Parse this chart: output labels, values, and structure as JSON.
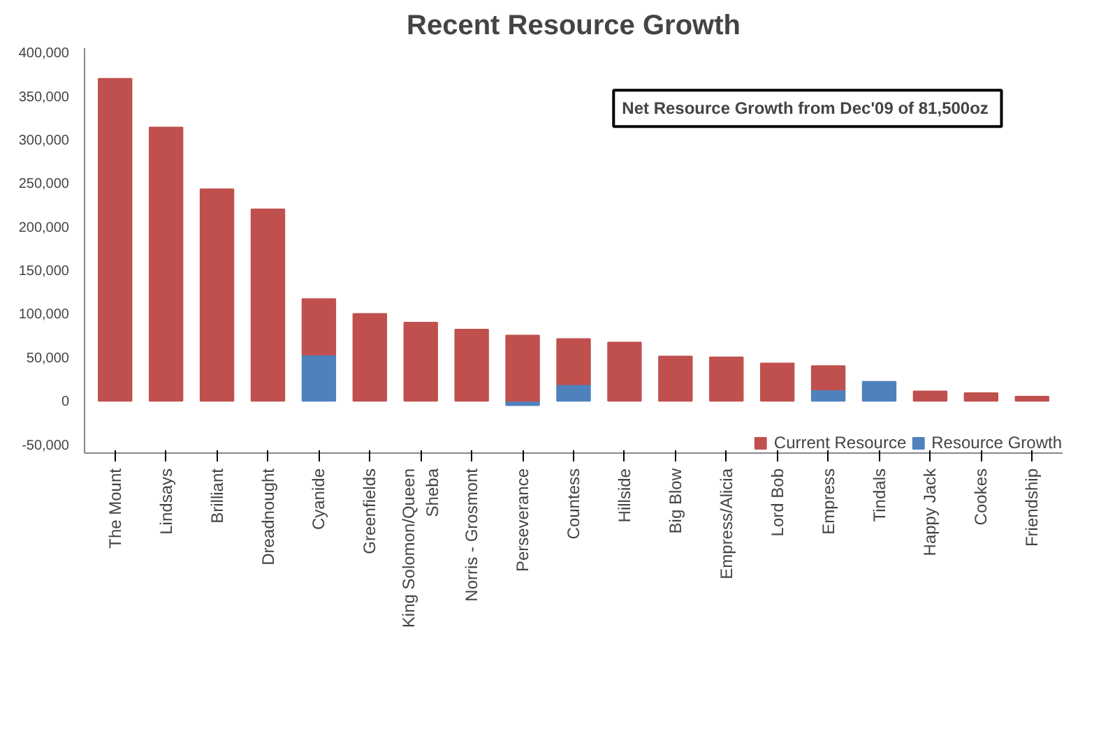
{
  "chart_data": {
    "type": "bar",
    "title": "Recent Resource Growth",
    "categories": [
      "The Mount",
      "Lindsays",
      "Brilliant",
      "Dreadnought",
      "Cyanide",
      "Greenfields",
      "King Solomon/Queen Sheba",
      "Norris - Grosmont",
      "Perseverance",
      "Countess",
      "Hillside",
      "Big Blow",
      "Empress/Alicia",
      "Lord Bob",
      "Empress",
      "Tindals",
      "Happy Jack",
      "Cookes",
      "Friendship"
    ],
    "stacked": true,
    "series": [
      {
        "name": "Resource Growth",
        "color": "#4f81bd",
        "values": [
          null,
          null,
          null,
          null,
          53000,
          null,
          null,
          null,
          -5000,
          19000,
          null,
          null,
          null,
          null,
          13000,
          22000,
          null,
          null,
          null
        ]
      },
      {
        "name": "Current Resource",
        "color": "#c0504d",
        "values": [
          370000,
          314000,
          243000,
          220000,
          64000,
          100000,
          90000,
          82000,
          75000,
          52000,
          67000,
          51000,
          50000,
          43000,
          27000,
          null,
          11000,
          9000,
          5000
        ]
      }
    ],
    "ylim": [
      -60000,
      405000
    ],
    "yticks": [
      {
        "value": -50000,
        "label": "-50,000"
      },
      0,
      {
        "value": 50000,
        "label": "50,000"
      },
      {
        "value": 100000,
        "label": "100,000"
      },
      {
        "value": 150000,
        "label": "150,000"
      },
      {
        "value": 200000,
        "label": "200,000"
      },
      {
        "value": 250000,
        "label": "250,000"
      },
      {
        "value": 300000,
        "label": "300,000"
      },
      {
        "value": 350000,
        "label": "350,000"
      },
      {
        "value": 400000,
        "label": "400,000"
      }
    ],
    "annotations": [
      "Net Resource Growth  from Dec'09 of 81,500oz"
    ],
    "grid": false,
    "legend": "bottom right"
  }
}
